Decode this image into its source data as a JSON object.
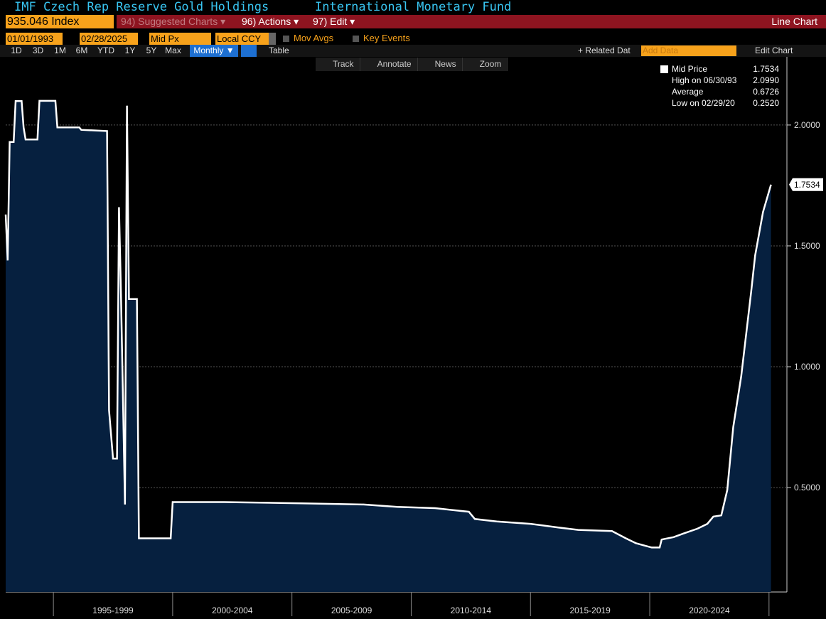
{
  "ui": {
    "title": "IMF Czech Rep Reserve Gold Holdings",
    "source": "International Monetary Fund",
    "ticker": "935.046 Index",
    "suggested": "94) Suggested Charts ▾",
    "actions": "96) Actions ▾",
    "edit": "97) Edit ▾",
    "chart_kind": "Line Chart",
    "start_date": "01/01/1993",
    "end_date": "02/28/2025",
    "field": "Mid Px",
    "currency": "Local CCY",
    "mov_avgs": "Mov Avgs",
    "key_events": "Key Events",
    "periods": [
      "1D",
      "3D",
      "1M",
      "6M",
      "YTD",
      "1Y",
      "5Y",
      "Max"
    ],
    "frequency": "Monthly ▼",
    "table": "Table",
    "related": "+ Related Dat",
    "add_data": "Add Data",
    "edit_chart": "Edit Chart",
    "tools": [
      "Track",
      "Annotate",
      "News",
      "Zoom"
    ]
  },
  "chart_data": {
    "type": "line",
    "fill": "#06203f",
    "color": "#ffffff",
    "x_period_labels": [
      "1995-1999",
      "2000-2004",
      "2005-2009",
      "2010-2014",
      "2015-2019",
      "2020-2024"
    ],
    "legend": [
      {
        "label": "Mid Price",
        "value": "1.7534"
      },
      {
        "label": "High on 06/30/93",
        "value": "2.0990"
      },
      {
        "label": "Average",
        "value": "0.6726"
      },
      {
        "label": "Low on 02/29/20",
        "value": "0.2520"
      }
    ],
    "xlim": [
      "1993-01",
      "2025-10"
    ],
    "ylim": [
      0.068,
      2.282
    ],
    "yticks": [
      {
        "value": 0.5,
        "label": "0.5000"
      },
      {
        "value": 1,
        "label": "1.0000"
      },
      {
        "value": 1.5,
        "label": "1.5000"
      },
      {
        "value": 2,
        "label": "2.0000"
      }
    ],
    "grid": true,
    "x": [
      "1993-01",
      "1993-02",
      "1993-03",
      "1993-05",
      "1993-06",
      "1993-09",
      "1993-10",
      "1993-11",
      "1994-05",
      "1994-06",
      "1995-02",
      "1995-03",
      "1996-02",
      "1996-03",
      "1997-04",
      "1997-05",
      "1997-07",
      "1997-09",
      "1997-10",
      "1997-11",
      "1998-01",
      "1998-02",
      "1998-03",
      "1998-07",
      "1998-08",
      "1999-12",
      "2000-01",
      "2002-03",
      "2005-06",
      "2008-01",
      "2009-06",
      "2011-01",
      "2012-06",
      "2012-09",
      "2013-08",
      "2015-01",
      "2016-03",
      "2017-01",
      "2018-06",
      "2019-01",
      "2019-06",
      "2020-02",
      "2020-06",
      "2020-07",
      "2021-01",
      "2021-06",
      "2022-01",
      "2022-06",
      "2022-09",
      "2023-01",
      "2023-04",
      "2023-07",
      "2023-11",
      "2024-01",
      "2024-04",
      "2024-06",
      "2024-10",
      "2025-02"
    ],
    "series": [
      {
        "name": "Mid Price",
        "values": [
          1.63,
          1.44,
          1.93,
          1.93,
          2.099,
          2.099,
          1.99,
          1.94,
          1.94,
          2.1,
          2.1,
          1.99,
          1.99,
          1.98,
          1.975,
          0.82,
          0.62,
          0.62,
          1.66,
          1.3,
          0.43,
          2.08,
          1.28,
          1.28,
          0.29,
          0.29,
          0.44,
          0.44,
          0.435,
          0.43,
          0.42,
          0.415,
          0.4,
          0.37,
          0.36,
          0.35,
          0.335,
          0.325,
          0.32,
          0.29,
          0.27,
          0.252,
          0.252,
          0.285,
          0.295,
          0.31,
          0.33,
          0.35,
          0.38,
          0.385,
          0.49,
          0.75,
          0.96,
          1.1,
          1.31,
          1.46,
          1.64,
          1.7534
        ]
      }
    ]
  }
}
